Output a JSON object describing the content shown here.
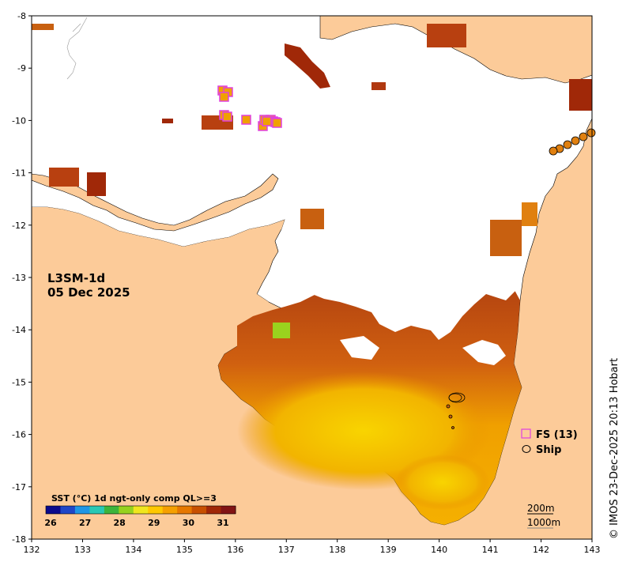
{
  "map": {
    "product": "L3SM-1d",
    "date": "05 Dec 2025",
    "credit": "© IMOS 23-Dec-2025 20:13 Hobart",
    "x_ticks": [
      "132",
      "133",
      "134",
      "135",
      "136",
      "137",
      "138",
      "139",
      "140",
      "141",
      "142",
      "143"
    ],
    "y_ticks": [
      "-8",
      "-9",
      "-10",
      "-11",
      "-12",
      "-13",
      "-14",
      "-15",
      "-16",
      "-17",
      "-18"
    ],
    "lon_range": [
      132,
      143
    ],
    "lat_range": [
      -18,
      -8
    ],
    "land_color": "#fccb99",
    "no_data_color": "#ffffff"
  },
  "legend": {
    "fs_label": "FS (13)",
    "fs_color": "#e040e0",
    "ship_label": "Ship",
    "ship_color": "#000000"
  },
  "colorbar": {
    "title": "SST (°C) 1d ngt-only comp QL>=3",
    "labels": [
      "26",
      "27",
      "28",
      "29",
      "30",
      "31"
    ],
    "colors": [
      "#0a0a8c",
      "#1e46c8",
      "#1e96e6",
      "#28c8b4",
      "#3cb43c",
      "#96d21e",
      "#f0e61e",
      "#ffc800",
      "#f5a000",
      "#e67800",
      "#c85000",
      "#a02808",
      "#821414"
    ]
  },
  "contours": {
    "shallow": "200m",
    "deep": "1000m"
  }
}
